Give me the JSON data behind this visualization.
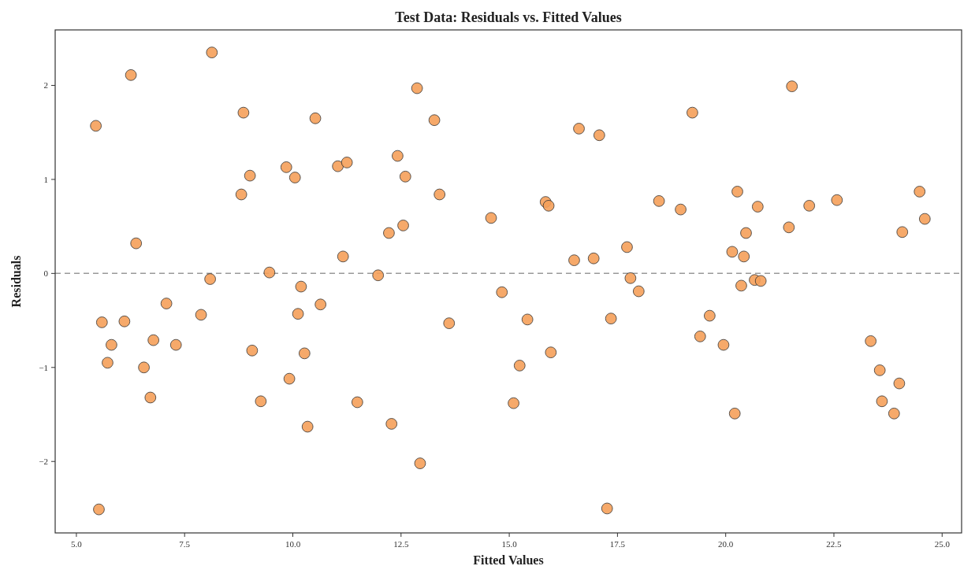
{
  "chart_data": {
    "type": "scatter",
    "title": "Test Data: Residuals vs. Fitted Values",
    "xlabel": "Fitted Values",
    "ylabel": "Residuals",
    "xlim": [
      4.51,
      25.45
    ],
    "ylim": [
      -2.76,
      2.59
    ],
    "xticks": [
      {
        "value": 5,
        "label": "5.0"
      },
      {
        "value": 7.5,
        "label": "7.5"
      },
      {
        "value": 10,
        "label": "10.0"
      },
      {
        "value": 12.5,
        "label": "12.5"
      },
      {
        "value": 15,
        "label": "15.0"
      },
      {
        "value": 17.5,
        "label": "17.5"
      },
      {
        "value": 20,
        "label": "20.0"
      },
      {
        "value": 22.5,
        "label": "22.5"
      },
      {
        "value": 25,
        "label": "25.0"
      }
    ],
    "yticks": [
      {
        "value": -2,
        "label": "−2"
      },
      {
        "value": -1,
        "label": "−1"
      },
      0,
      1,
      2
    ],
    "grid": false,
    "marker": "circle",
    "ref_lines": [
      {
        "axis": "y",
        "value": 0,
        "color": "#999999",
        "line_style": "dashed"
      }
    ],
    "series": [
      {
        "color": "#f5a05a",
        "x": [
          5.45,
          5.59,
          5.81,
          5.72,
          5.52,
          6.26,
          6.38,
          6.11,
          6.56,
          6.71,
          6.78,
          7.08,
          7.3,
          7.88,
          8.09,
          8.13,
          8.81,
          8.86,
          9.01,
          9.06,
          9.26,
          9.46,
          9.85,
          9.92,
          10.05,
          10.12,
          10.19,
          10.27,
          10.34,
          10.52,
          10.64,
          11.04,
          11.16,
          11.25,
          11.49,
          11.97,
          12.22,
          12.28,
          12.42,
          12.55,
          12.6,
          12.87,
          12.94,
          13.27,
          13.39,
          13.61,
          14.58,
          14.83,
          15.1,
          15.24,
          15.42,
          15.84,
          15.91,
          15.96,
          16.5,
          16.61,
          16.95,
          17.08,
          17.26,
          17.35,
          17.72,
          17.8,
          17.99,
          18.46,
          18.96,
          19.23,
          19.41,
          19.63,
          19.95,
          20.15,
          20.21,
          20.27,
          20.36,
          20.42,
          20.47,
          20.67,
          20.74,
          20.81,
          21.46,
          21.53,
          21.93,
          22.57,
          23.35,
          23.56,
          23.61,
          23.89,
          24.01,
          24.08,
          24.48,
          24.6
        ],
        "values": [
          1.57,
          -0.52,
          -0.76,
          -0.95,
          -2.51,
          2.11,
          0.32,
          -0.51,
          -1.0,
          -1.32,
          -0.71,
          -0.32,
          -0.76,
          -0.44,
          -0.06,
          2.35,
          0.84,
          1.71,
          1.04,
          -0.82,
          -1.36,
          0.01,
          1.13,
          -1.12,
          1.02,
          -0.43,
          -0.14,
          -0.85,
          -1.63,
          1.65,
          -0.33,
          1.14,
          0.18,
          1.18,
          -1.37,
          -0.02,
          0.43,
          -1.6,
          1.25,
          0.51,
          1.03,
          1.97,
          -2.02,
          1.63,
          0.84,
          -0.53,
          0.59,
          -0.2,
          -1.38,
          -0.98,
          -0.49,
          0.76,
          0.72,
          -0.84,
          0.14,
          1.54,
          0.16,
          1.47,
          -2.5,
          -0.48,
          0.28,
          -0.05,
          -0.19,
          0.77,
          0.68,
          1.71,
          -0.67,
          -0.45,
          -0.76,
          0.23,
          -1.49,
          0.87,
          -0.13,
          0.18,
          0.43,
          -0.07,
          0.71,
          -0.08,
          0.49,
          1.99,
          0.72,
          0.78,
          -0.72,
          -1.03,
          -1.36,
          -1.49,
          -1.17,
          0.44,
          0.87,
          0.58
        ]
      }
    ]
  }
}
